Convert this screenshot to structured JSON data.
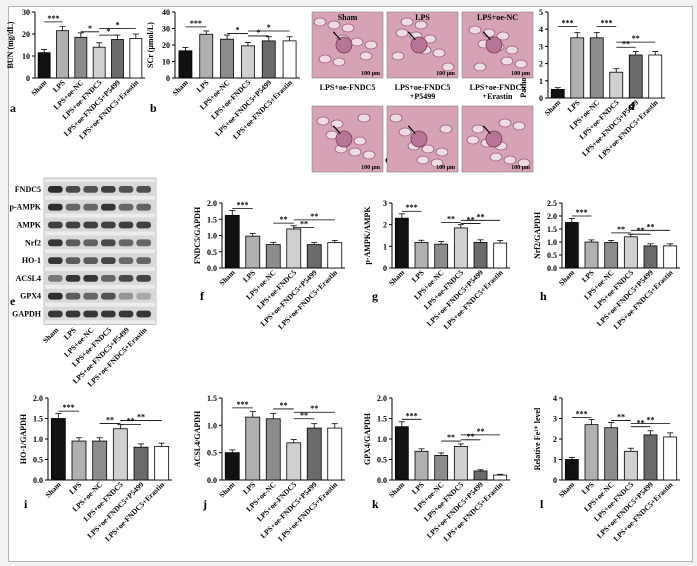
{
  "colors": {
    "sham": "#111111",
    "lps": "#b0b0b0",
    "nc": "#8c8c8c",
    "fndc5": "#d0d0d0",
    "p5499": "#6a6a6a",
    "erastin": "#ffffff",
    "he_stain": "#d6a3b6"
  },
  "categories": [
    "Sham",
    "LPS",
    "LPS+oe-NC",
    "LPS+oe-FNDC5",
    "LPS+oe-FNDC5+P5499",
    "LPS+oe-FNDC5+Erastin"
  ],
  "chart_data": [
    {
      "type": "bar",
      "panel": "a",
      "ylabel": "BUN (mg/dL)",
      "ylim": [
        0,
        30
      ],
      "yticks": [
        "0",
        "10",
        "20",
        "30"
      ],
      "values": [
        11.5,
        21.5,
        18.5,
        14,
        17.5,
        18
      ],
      "errors": [
        1.5,
        2,
        2,
        2,
        2,
        2
      ],
      "sig": [
        {
          "from": 0,
          "to": 1,
          "label": "***",
          "y": 25.5
        },
        {
          "from": 2,
          "to": 3,
          "label": "*",
          "y": 21
        },
        {
          "from": 3,
          "to": 4,
          "label": "*",
          "y": 19.5
        },
        {
          "from": 3,
          "to": 5,
          "label": "*",
          "y": 22.5
        }
      ]
    },
    {
      "type": "bar",
      "panel": "b",
      "ylabel": "SCr (μmol/L)",
      "ylim": [
        0,
        40
      ],
      "yticks": [
        "0",
        "10",
        "20",
        "30",
        "40"
      ],
      "values": [
        16.5,
        26.5,
        23.5,
        19.5,
        22.5,
        22.5
      ],
      "errors": [
        2,
        2,
        2.5,
        2,
        2.5,
        2.5
      ],
      "sig": [
        {
          "from": 0,
          "to": 1,
          "label": "***",
          "y": 31
        },
        {
          "from": 2,
          "to": 3,
          "label": "*",
          "y": 27
        },
        {
          "from": 3,
          "to": 4,
          "label": "*",
          "y": 25.5
        },
        {
          "from": 3,
          "to": 5,
          "label": "*",
          "y": 28.5
        }
      ]
    },
    {
      "type": "bar",
      "panel": "d",
      "ylabel": "Pathological injury score",
      "ylim": [
        0,
        5
      ],
      "yticks": [
        "0",
        "1",
        "2",
        "3",
        "4",
        "5"
      ],
      "values": [
        0.5,
        3.5,
        3.5,
        1.5,
        2.5,
        2.5
      ],
      "errors": [
        0.1,
        0.3,
        0.3,
        0.2,
        0.2,
        0.2
      ],
      "sig": [
        {
          "from": 0,
          "to": 1,
          "label": "***",
          "y": 4.15
        },
        {
          "from": 2,
          "to": 3,
          "label": "***",
          "y": 4.15
        },
        {
          "from": 3,
          "to": 4,
          "label": "**",
          "y": 2.95
        },
        {
          "from": 3,
          "to": 5,
          "label": "**",
          "y": 3.25
        }
      ]
    },
    {
      "type": "bar",
      "panel": "f",
      "ylabel": "FNDC5/GAPDH",
      "ylim": [
        0,
        2.0
      ],
      "yticks": [
        "0.0",
        "0.5",
        "1.0",
        "1.5",
        "2.0"
      ],
      "values": [
        1.62,
        0.98,
        0.72,
        1.2,
        0.72,
        0.78
      ],
      "errors": [
        0.15,
        0.08,
        0.07,
        0.1,
        0.06,
        0.07
      ],
      "sig": [
        {
          "from": 0,
          "to": 1,
          "label": "***",
          "y": 1.83
        },
        {
          "from": 2,
          "to": 3,
          "label": "**",
          "y": 1.38
        },
        {
          "from": 3,
          "to": 4,
          "label": "**",
          "y": 1.25
        },
        {
          "from": 3,
          "to": 5,
          "label": "**",
          "y": 1.48
        }
      ]
    },
    {
      "type": "bar",
      "panel": "g",
      "ylabel": "p-AMPK/AMPK",
      "ylim": [
        0,
        3
      ],
      "yticks": [
        "0",
        "1",
        "2",
        "3"
      ],
      "values": [
        2.3,
        1.18,
        1.1,
        1.85,
        1.18,
        1.15
      ],
      "errors": [
        0.2,
        0.1,
        0.12,
        0.15,
        0.12,
        0.12
      ],
      "sig": [
        {
          "from": 0,
          "to": 1,
          "label": "***",
          "y": 2.62
        },
        {
          "from": 2,
          "to": 3,
          "label": "**",
          "y": 2.1
        },
        {
          "from": 3,
          "to": 4,
          "label": "**",
          "y": 2.05
        },
        {
          "from": 3,
          "to": 5,
          "label": "**",
          "y": 2.2
        }
      ]
    },
    {
      "type": "bar",
      "panel": "h",
      "ylabel": "Nrf2/GAPDH",
      "ylim": [
        0,
        2.5
      ],
      "yticks": [
        "0.0",
        "0.5",
        "1.0",
        "1.5",
        "2.0",
        "2.5"
      ],
      "values": [
        1.75,
        1.0,
        0.98,
        1.2,
        0.85,
        0.85
      ],
      "errors": [
        0.15,
        0.08,
        0.08,
        0.1,
        0.08,
        0.08
      ],
      "sig": [
        {
          "from": 0,
          "to": 1,
          "label": "***",
          "y": 2.0
        },
        {
          "from": 2,
          "to": 3,
          "label": "**",
          "y": 1.35
        },
        {
          "from": 3,
          "to": 4,
          "label": "**",
          "y": 1.3
        },
        {
          "from": 3,
          "to": 5,
          "label": "**",
          "y": 1.45
        }
      ]
    },
    {
      "type": "bar",
      "panel": "i",
      "ylabel": "HO-1/GAPDH",
      "ylim": [
        0,
        2.0
      ],
      "yticks": [
        "0.0",
        "0.5",
        "1.0",
        "1.5",
        "2.0"
      ],
      "values": [
        1.5,
        0.95,
        0.95,
        1.25,
        0.8,
        0.82
      ],
      "errors": [
        0.12,
        0.08,
        0.08,
        0.1,
        0.08,
        0.08
      ],
      "sig": [
        {
          "from": 0,
          "to": 1,
          "label": "***",
          "y": 1.68
        },
        {
          "from": 2,
          "to": 3,
          "label": "**",
          "y": 1.38
        },
        {
          "from": 3,
          "to": 4,
          "label": "**",
          "y": 1.35
        },
        {
          "from": 3,
          "to": 5,
          "label": "**",
          "y": 1.45
        }
      ]
    },
    {
      "type": "bar",
      "panel": "j",
      "ylabel": "ACSL4/GAPDH",
      "ylim": [
        0,
        1.5
      ],
      "yticks": [
        "0.0",
        "0.5",
        "1.0",
        "1.5"
      ],
      "values": [
        0.5,
        1.15,
        1.12,
        0.68,
        0.95,
        0.95
      ],
      "errors": [
        0.05,
        0.1,
        0.1,
        0.06,
        0.08,
        0.08
      ],
      "sig": [
        {
          "from": 0,
          "to": 1,
          "label": "***",
          "y": 1.32
        },
        {
          "from": 2,
          "to": 3,
          "label": "**",
          "y": 1.3
        },
        {
          "from": 3,
          "to": 4,
          "label": "**",
          "y": 1.12
        },
        {
          "from": 3,
          "to": 5,
          "label": "**",
          "y": 1.24
        }
      ]
    },
    {
      "type": "bar",
      "panel": "k",
      "ylabel": "GPX4/GAPDH",
      "ylim": [
        0,
        2.0
      ],
      "yticks": [
        "0.0",
        "0.5",
        "1.0",
        "1.5",
        "2.0"
      ],
      "values": [
        1.3,
        0.7,
        0.6,
        0.82,
        0.22,
        0.12
      ],
      "errors": [
        0.12,
        0.06,
        0.06,
        0.06,
        0.03,
        0.02
      ],
      "sig": [
        {
          "from": 0,
          "to": 1,
          "label": "***",
          "y": 1.48
        },
        {
          "from": 2,
          "to": 3,
          "label": "**",
          "y": 0.95
        },
        {
          "from": 3,
          "to": 4,
          "label": "**",
          "y": 0.98
        },
        {
          "from": 3,
          "to": 5,
          "label": "**",
          "y": 1.1
        }
      ]
    },
    {
      "type": "bar",
      "panel": "l",
      "ylabel": "Relative Fe²⁺ level",
      "ylim": [
        0,
        4
      ],
      "yticks": [
        "0",
        "1",
        "2",
        "3",
        "4"
      ],
      "values": [
        1.0,
        2.7,
        2.55,
        1.4,
        2.2,
        2.1
      ],
      "errors": [
        0.1,
        0.25,
        0.25,
        0.15,
        0.2,
        0.2
      ],
      "sig": [
        {
          "from": 0,
          "to": 1,
          "label": "***",
          "y": 3.05
        },
        {
          "from": 2,
          "to": 3,
          "label": "**",
          "y": 2.9
        },
        {
          "from": 3,
          "to": 4,
          "label": "**",
          "y": 2.6
        },
        {
          "from": 3,
          "to": 5,
          "label": "**",
          "y": 2.75
        }
      ]
    }
  ],
  "histology": {
    "panel": "c",
    "images": [
      {
        "label": "Sham",
        "scale": "100 μm"
      },
      {
        "label": "LPS",
        "scale": "100 μm"
      },
      {
        "label": "LPS+oe-NC",
        "scale": "100 μm"
      },
      {
        "label": "LPS+oe-FNDC5",
        "scale": "100 μm"
      },
      {
        "label": "LPS+oe-FNDC5\n+P5499",
        "scale": "100 μm"
      },
      {
        "label": "LPS+oe-FNDC5\n+Erastin",
        "scale": "100 μm"
      }
    ]
  },
  "western_blot": {
    "panel": "e",
    "proteins": [
      "FNDC5",
      "p-AMPK",
      "AMPK",
      "Nrf2",
      "HO-1",
      "ACSL4",
      "GPX4",
      "GAPDH"
    ]
  }
}
